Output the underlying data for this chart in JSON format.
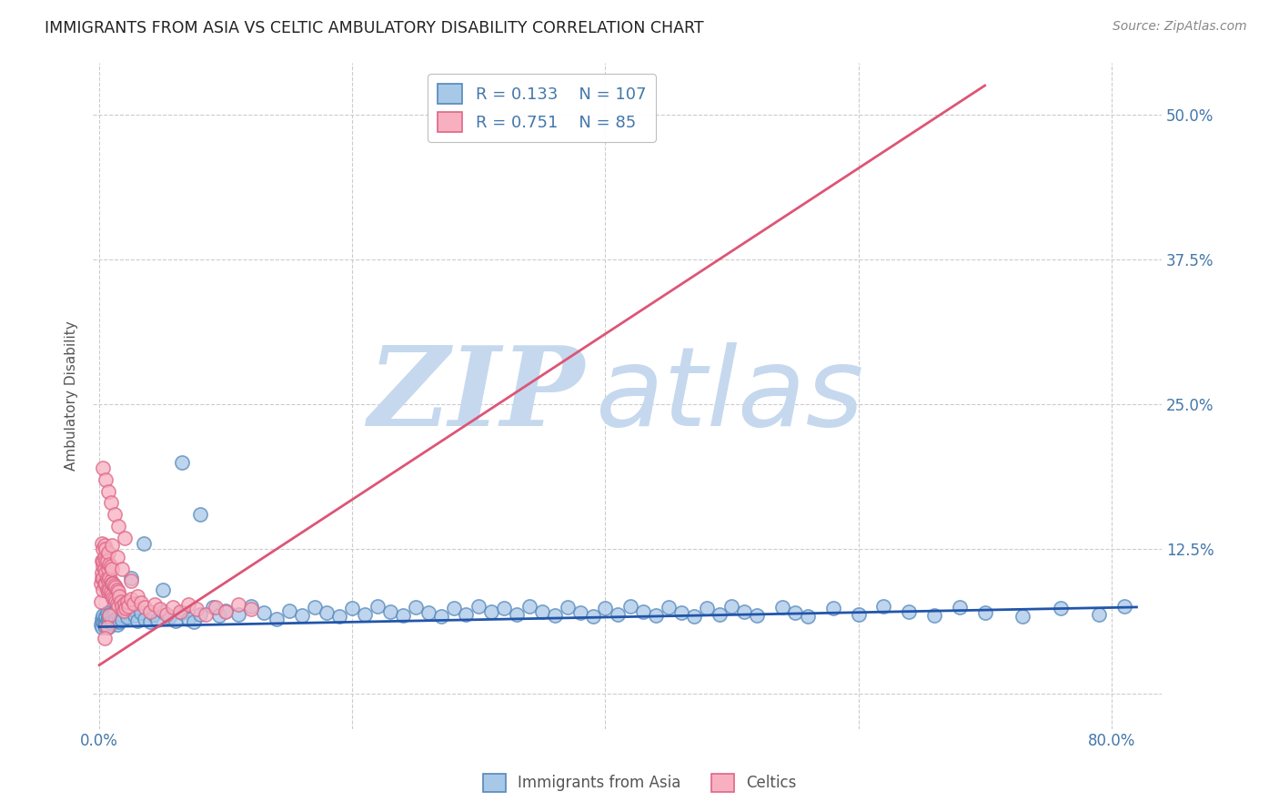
{
  "title": "IMMIGRANTS FROM ASIA VS CELTIC AMBULATORY DISABILITY CORRELATION CHART",
  "source": "Source: ZipAtlas.com",
  "ylabel_label": "Ambulatory Disability",
  "x_ticks": [
    0.0,
    0.2,
    0.4,
    0.6,
    0.8
  ],
  "y_ticks": [
    0.0,
    0.125,
    0.25,
    0.375,
    0.5
  ],
  "xlim": [
    -0.005,
    0.84
  ],
  "ylim": [
    -0.03,
    0.545
  ],
  "watermark_zip": "ZIP",
  "watermark_atlas": "atlas",
  "watermark_color": "#c8d8ec",
  "background_color": "#ffffff",
  "grid_color": "#cccccc",
  "series": [
    {
      "name": "Immigrants from Asia",
      "R": 0.133,
      "N": 107,
      "marker_facecolor": "#a8c8e8",
      "marker_edgecolor": "#5588bb",
      "line_color": "#2255aa",
      "line_x": [
        0.0,
        0.82
      ],
      "line_y": [
        0.058,
        0.075
      ]
    },
    {
      "name": "Celtics",
      "R": 0.751,
      "N": 85,
      "marker_facecolor": "#f8b0c0",
      "marker_edgecolor": "#dd6688",
      "line_color": "#dd5577",
      "line_x": [
        0.0,
        0.7
      ],
      "line_y": [
        0.025,
        0.525
      ]
    }
  ],
  "asia_x": [
    0.001,
    0.002,
    0.002,
    0.003,
    0.003,
    0.004,
    0.004,
    0.005,
    0.005,
    0.006,
    0.006,
    0.007,
    0.007,
    0.008,
    0.008,
    0.009,
    0.01,
    0.01,
    0.011,
    0.012,
    0.013,
    0.014,
    0.015,
    0.016,
    0.017,
    0.018,
    0.02,
    0.022,
    0.025,
    0.028,
    0.03,
    0.033,
    0.036,
    0.04,
    0.043,
    0.046,
    0.05,
    0.055,
    0.06,
    0.065,
    0.07,
    0.075,
    0.08,
    0.09,
    0.095,
    0.1,
    0.11,
    0.12,
    0.13,
    0.14,
    0.15,
    0.16,
    0.17,
    0.18,
    0.19,
    0.2,
    0.21,
    0.22,
    0.23,
    0.24,
    0.25,
    0.26,
    0.27,
    0.28,
    0.29,
    0.3,
    0.31,
    0.32,
    0.33,
    0.34,
    0.35,
    0.36,
    0.37,
    0.38,
    0.39,
    0.4,
    0.41,
    0.42,
    0.43,
    0.44,
    0.45,
    0.46,
    0.47,
    0.48,
    0.49,
    0.5,
    0.51,
    0.52,
    0.54,
    0.55,
    0.56,
    0.58,
    0.6,
    0.62,
    0.64,
    0.66,
    0.68,
    0.7,
    0.73,
    0.76,
    0.79,
    0.81,
    0.025,
    0.035,
    0.05,
    0.065,
    0.08
  ],
  "asia_y": [
    0.06,
    0.058,
    0.065,
    0.062,
    0.068,
    0.059,
    0.064,
    0.061,
    0.067,
    0.063,
    0.07,
    0.058,
    0.065,
    0.062,
    0.069,
    0.064,
    0.061,
    0.068,
    0.063,
    0.07,
    0.065,
    0.06,
    0.067,
    0.062,
    0.069,
    0.064,
    0.071,
    0.066,
    0.073,
    0.068,
    0.063,
    0.07,
    0.065,
    0.062,
    0.069,
    0.064,
    0.071,
    0.066,
    0.063,
    0.07,
    0.065,
    0.062,
    0.069,
    0.075,
    0.068,
    0.072,
    0.069,
    0.076,
    0.07,
    0.065,
    0.072,
    0.068,
    0.075,
    0.07,
    0.067,
    0.074,
    0.069,
    0.076,
    0.071,
    0.068,
    0.075,
    0.07,
    0.067,
    0.074,
    0.069,
    0.076,
    0.071,
    0.074,
    0.069,
    0.076,
    0.071,
    0.068,
    0.075,
    0.07,
    0.067,
    0.074,
    0.069,
    0.076,
    0.071,
    0.068,
    0.075,
    0.07,
    0.067,
    0.074,
    0.069,
    0.076,
    0.071,
    0.068,
    0.075,
    0.07,
    0.067,
    0.074,
    0.069,
    0.076,
    0.071,
    0.068,
    0.075,
    0.07,
    0.067,
    0.074,
    0.069,
    0.076,
    0.1,
    0.13,
    0.09,
    0.2,
    0.155
  ],
  "celtics_x": [
    0.001,
    0.001,
    0.002,
    0.002,
    0.002,
    0.002,
    0.003,
    0.003,
    0.003,
    0.003,
    0.003,
    0.004,
    0.004,
    0.004,
    0.004,
    0.005,
    0.005,
    0.005,
    0.005,
    0.006,
    0.006,
    0.006,
    0.007,
    0.007,
    0.007,
    0.007,
    0.008,
    0.008,
    0.008,
    0.009,
    0.009,
    0.009,
    0.01,
    0.01,
    0.01,
    0.011,
    0.011,
    0.012,
    0.012,
    0.013,
    0.013,
    0.014,
    0.014,
    0.015,
    0.015,
    0.016,
    0.017,
    0.018,
    0.019,
    0.02,
    0.021,
    0.022,
    0.023,
    0.025,
    0.027,
    0.03,
    0.033,
    0.036,
    0.04,
    0.044,
    0.048,
    0.053,
    0.058,
    0.064,
    0.07,
    0.077,
    0.084,
    0.092,
    0.1,
    0.11,
    0.12,
    0.003,
    0.005,
    0.007,
    0.009,
    0.012,
    0.015,
    0.02,
    0.008,
    0.006,
    0.004,
    0.01,
    0.014,
    0.018,
    0.025
  ],
  "celtics_y": [
    0.08,
    0.095,
    0.1,
    0.105,
    0.115,
    0.13,
    0.09,
    0.1,
    0.11,
    0.115,
    0.125,
    0.095,
    0.108,
    0.118,
    0.128,
    0.095,
    0.105,
    0.115,
    0.125,
    0.09,
    0.1,
    0.115,
    0.088,
    0.098,
    0.108,
    0.122,
    0.09,
    0.1,
    0.112,
    0.088,
    0.098,
    0.11,
    0.085,
    0.095,
    0.108,
    0.083,
    0.095,
    0.082,
    0.094,
    0.08,
    0.092,
    0.078,
    0.09,
    0.076,
    0.088,
    0.084,
    0.08,
    0.076,
    0.072,
    0.078,
    0.074,
    0.08,
    0.076,
    0.082,
    0.078,
    0.084,
    0.079,
    0.075,
    0.071,
    0.077,
    0.073,
    0.069,
    0.075,
    0.071,
    0.077,
    0.073,
    0.069,
    0.075,
    0.071,
    0.077,
    0.073,
    0.195,
    0.185,
    0.175,
    0.165,
    0.155,
    0.145,
    0.135,
    0.068,
    0.058,
    0.048,
    0.128,
    0.118,
    0.108,
    0.098
  ],
  "title_color": "#222222",
  "source_color": "#888888",
  "axis_color": "#4477aa",
  "tick_label_color": "#4477aa"
}
